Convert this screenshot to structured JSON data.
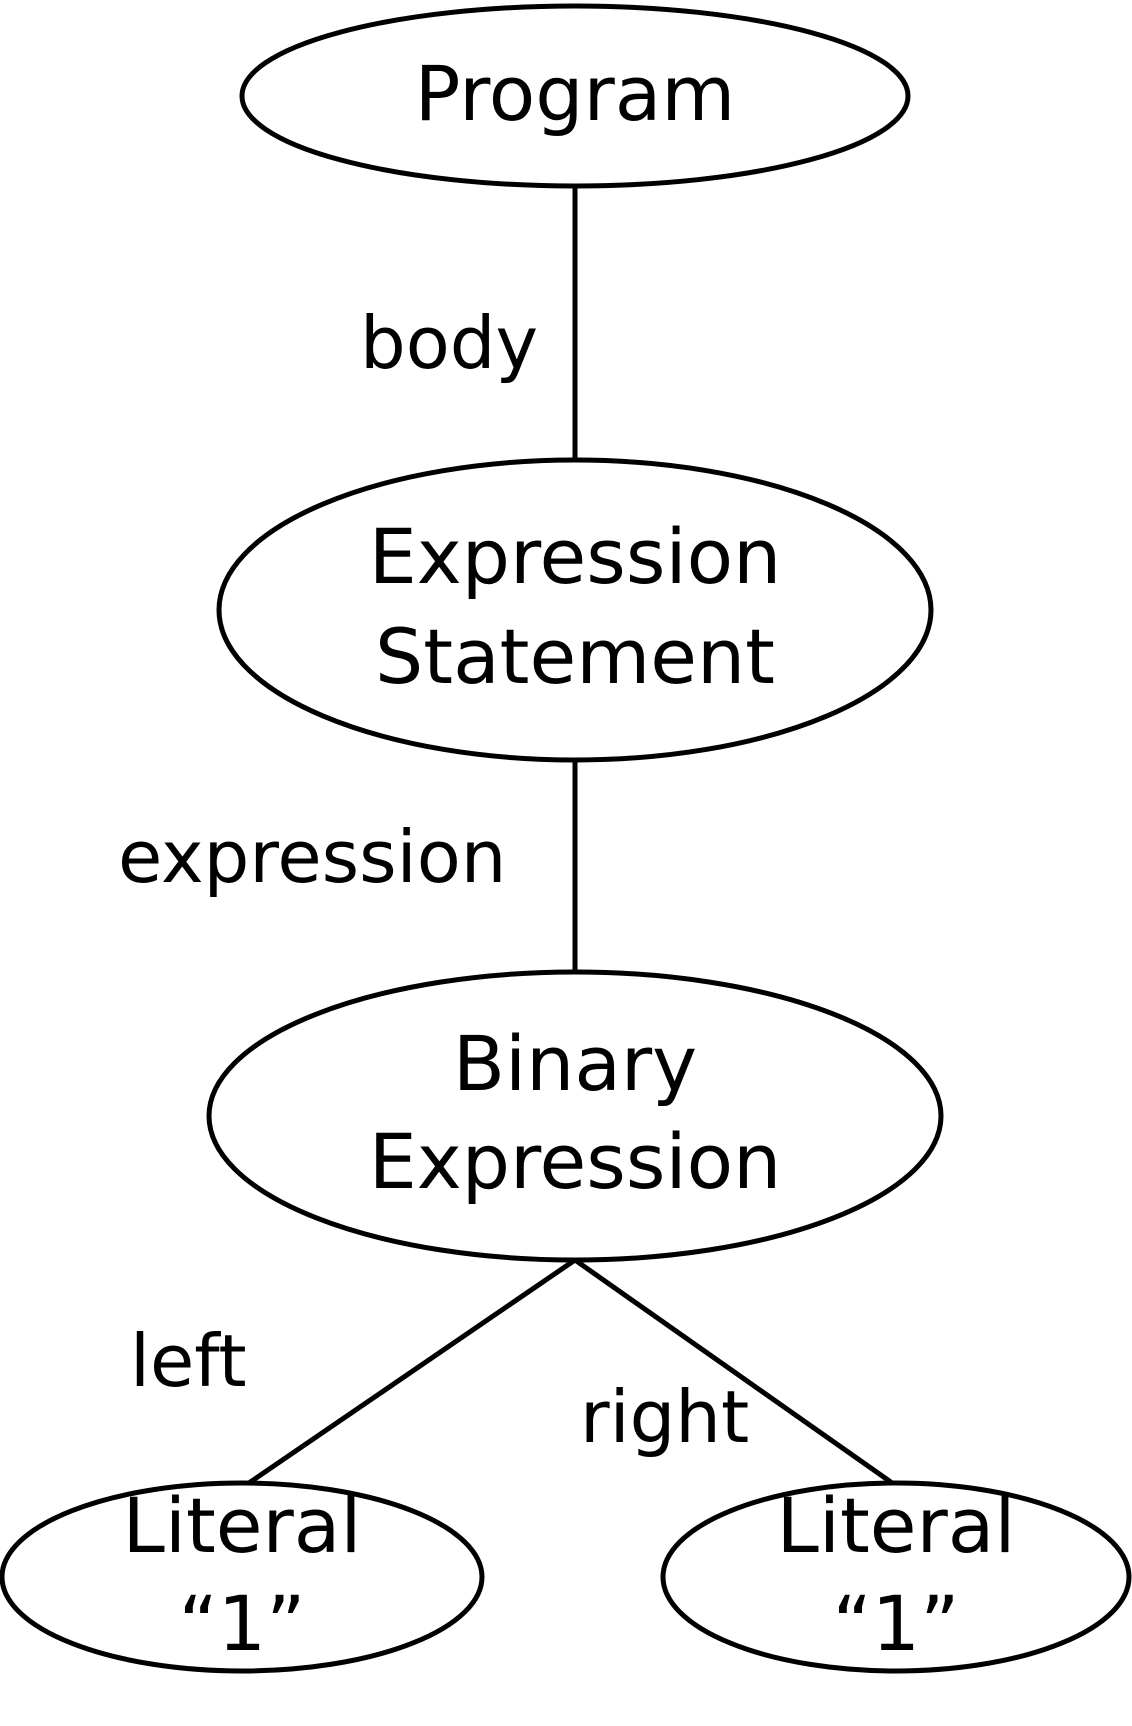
{
  "nodes": {
    "program": {
      "line1": "Program"
    },
    "expression_statement": {
      "line1": "Expression",
      "line2": "Statement"
    },
    "binary_expression": {
      "line1": "Binary",
      "line2": "Expression"
    },
    "literal_left": {
      "line1": "Literal",
      "line2": "“1”"
    },
    "literal_right": {
      "line1": "Literal",
      "line2": "“1”"
    }
  },
  "edges": {
    "body": "body",
    "expression": "expression",
    "left": "left",
    "right": "right"
  },
  "colors": {
    "stroke": "#000000",
    "background": "#ffffff"
  }
}
